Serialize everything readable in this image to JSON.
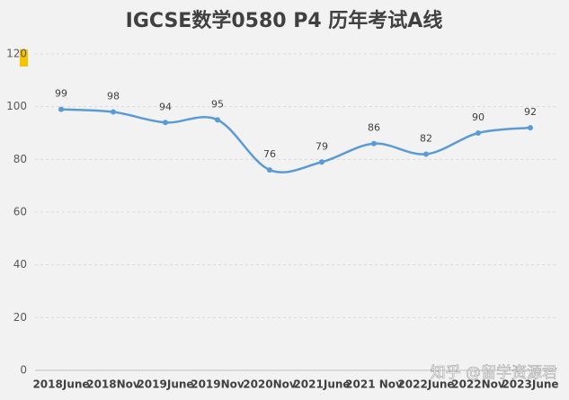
{
  "chart_data": {
    "type": "line",
    "title": "IGCSE数学0580 P4 历年考试A线",
    "categories": [
      "2018June",
      "2018Nov",
      "2019June",
      "2019Nov",
      "2020Nov",
      "2021June",
      "2021 Nov",
      "2022June",
      "2022Nov",
      "2023June"
    ],
    "series": [
      {
        "name": "A线",
        "color": "#5b9bd5",
        "values": [
          99,
          98,
          94,
          95,
          76,
          79,
          86,
          82,
          90,
          92
        ]
      }
    ],
    "ylim": [
      0,
      120
    ],
    "yticks": [
      0,
      20,
      40,
      60,
      80,
      100,
      120
    ],
    "grid": true,
    "smooth": true,
    "watermark": "知乎 @留学资源君"
  }
}
